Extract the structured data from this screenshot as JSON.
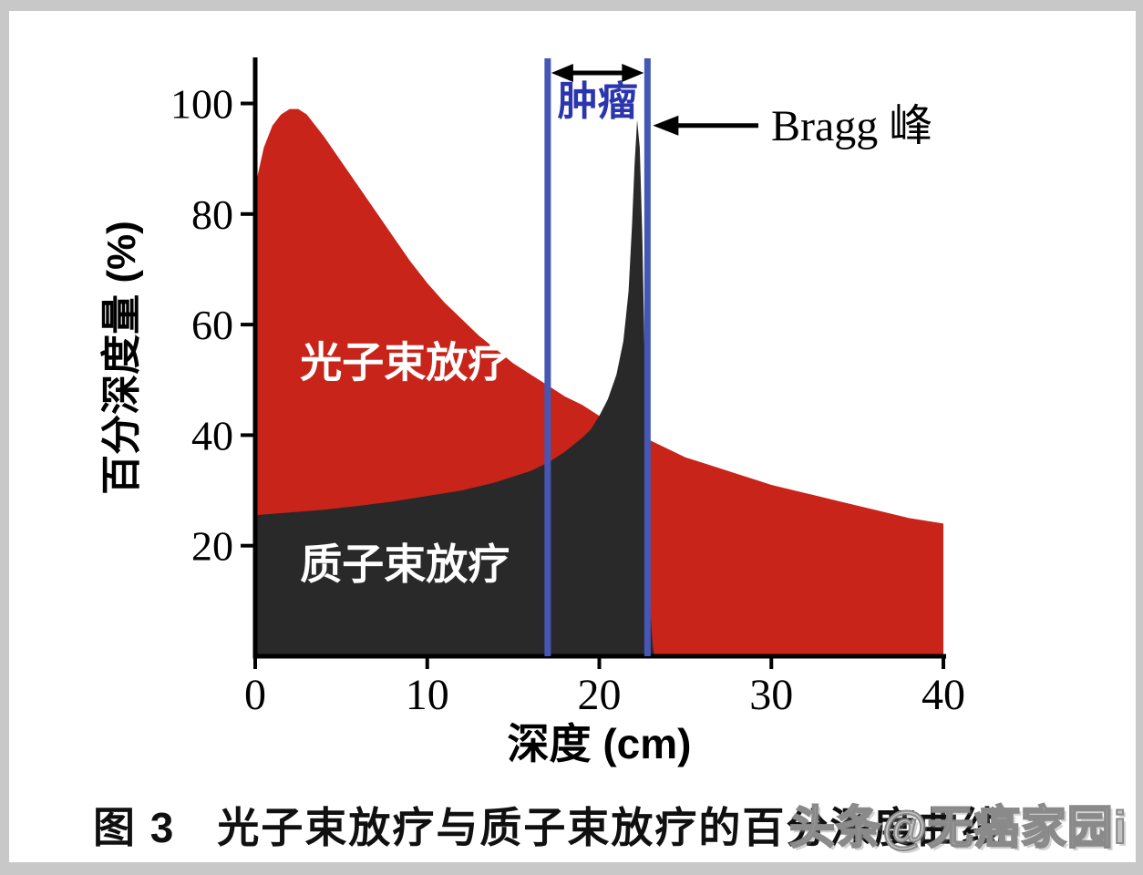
{
  "figure": {
    "caption_prefix": "图 3",
    "caption_text": "光子束放疗与质子束放疗的百分深度曲线",
    "watermark": "头条@无癌家园i"
  },
  "chart_data": {
    "type": "area",
    "title": "",
    "xlabel": "深度 (cm)",
    "ylabel": "百分深度量 (%)",
    "xlim": [
      0,
      40
    ],
    "ylim": [
      0,
      108
    ],
    "xticks": [
      0,
      10,
      20,
      30,
      40
    ],
    "yticks": [
      20,
      40,
      60,
      80,
      100
    ],
    "grid": false,
    "axis_color": "#000000",
    "series": [
      {
        "key": "photon-area",
        "name": "光子束放疗",
        "color": "#c8241a",
        "label_color": "#ffffff",
        "x": [
          0,
          0.5,
          1,
          1.5,
          2,
          2.5,
          3,
          4,
          5,
          6,
          7,
          8,
          9,
          10,
          11,
          12,
          13,
          14,
          15,
          16,
          17,
          18,
          19,
          20,
          21,
          22,
          23,
          24,
          25,
          26,
          27,
          28,
          29,
          30,
          32,
          34,
          36,
          38,
          40
        ],
        "y": [
          85,
          92,
          96,
          98,
          99,
          99,
          98,
          94,
          89.5,
          85,
          80.5,
          76,
          71.5,
          67.5,
          64,
          61,
          58,
          55.5,
          53,
          51,
          49,
          47,
          45.5,
          43.5,
          42,
          40.5,
          39,
          37.5,
          36,
          35,
          34,
          33,
          32,
          31,
          29.5,
          28,
          26.5,
          25,
          24
        ]
      },
      {
        "key": "proton-area",
        "name": "质子束放疗",
        "color": "#29292a",
        "label_color": "#ffffff",
        "x": [
          0,
          2,
          4,
          6,
          8,
          10,
          12,
          14,
          15,
          16,
          17,
          18,
          19,
          19.5,
          20,
          20.5,
          21,
          21.4,
          21.7,
          21.9,
          22.05,
          22.2,
          22.35,
          22.5,
          22.65,
          22.8,
          22.95,
          23.1,
          23.2
        ],
        "y": [
          25.5,
          26,
          26.5,
          27.2,
          28,
          29,
          30,
          31.5,
          32.5,
          33.5,
          35,
          37,
          39.5,
          41,
          43.5,
          46.5,
          51,
          57,
          66,
          78,
          89,
          97,
          92,
          76,
          52,
          26,
          9,
          2,
          0
        ]
      }
    ],
    "tumor_region": {
      "label": "肿瘤",
      "x_start": 17.0,
      "x_end": 22.8,
      "line_color": "#4656b4",
      "label_color": "#2a35ae"
    },
    "bragg_annotation": {
      "label": "Bragg 峰",
      "peak_x": 22.2,
      "peak_y": 97
    }
  }
}
